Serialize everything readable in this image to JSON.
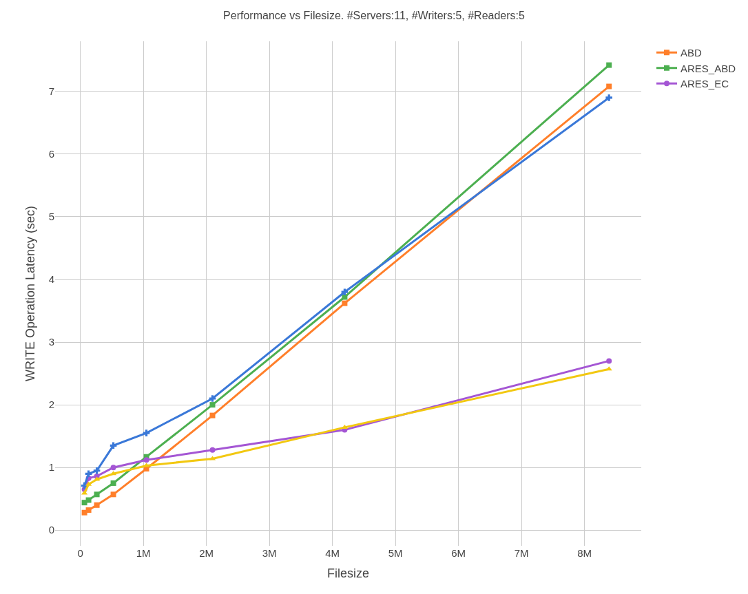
{
  "chart_data": {
    "type": "line",
    "title": "Performance vs Filesize. #Servers:11, #Writers:5, #Readers:5",
    "xlabel": "Filesize",
    "ylabel": "WRITE Operation Latency (sec)",
    "x": [
      65536,
      131072,
      262144,
      524288,
      1048576,
      2097152,
      4194304,
      8388608
    ],
    "xlim": [
      -400000,
      8900000
    ],
    "xticks": [
      0,
      {
        "value": 1000000,
        "label": "1M"
      },
      {
        "value": 2000000,
        "label": "2M"
      },
      {
        "value": 3000000,
        "label": "3M"
      },
      {
        "value": 4000000,
        "label": "4M"
      },
      {
        "value": 5000000,
        "label": "5M"
      },
      {
        "value": 6000000,
        "label": "6M"
      },
      {
        "value": 7000000,
        "label": "7M"
      },
      {
        "value": 8000000,
        "label": "8M"
      }
    ],
    "ylim": [
      -0.25,
      7.8
    ],
    "yticks": [
      0,
      1,
      2,
      3,
      4,
      5,
      6,
      7
    ],
    "grid": true,
    "legend": "top right",
    "line_style": "solid",
    "series": [
      {
        "name": "ABD",
        "color": "#ff7f2a",
        "marker": "square",
        "values": [
          0.28,
          0.32,
          0.4,
          0.57,
          0.98,
          1.83,
          3.62,
          7.08
        ]
      },
      {
        "name": "ARES_ABD",
        "color": "#4caf50",
        "marker": "square",
        "values": [
          0.44,
          0.48,
          0.57,
          0.75,
          1.17,
          2.0,
          3.72,
          7.42
        ]
      },
      {
        "name": "ARES_EC",
        "color": "#a456d4",
        "marker": "circle",
        "values": [
          0.65,
          0.83,
          0.86,
          1.0,
          1.12,
          1.28,
          1.6,
          2.7
        ]
      },
      {
        "color": "#3a78d8",
        "marker": "cross",
        "values": [
          0.71,
          0.9,
          0.95,
          1.35,
          1.55,
          2.1,
          3.8,
          6.9
        ]
      },
      {
        "color": "#f2c811",
        "marker": "triangle",
        "values": [
          0.59,
          0.73,
          0.81,
          0.9,
          1.03,
          1.14,
          1.64,
          2.57
        ]
      }
    ]
  }
}
